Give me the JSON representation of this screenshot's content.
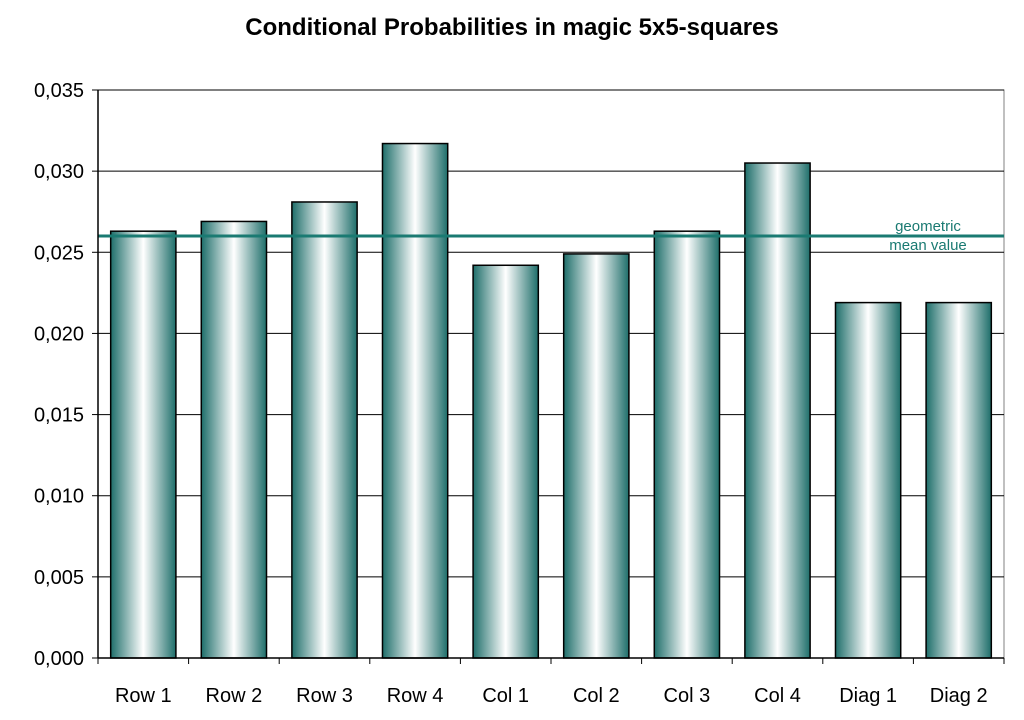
{
  "chart_data": {
    "type": "bar",
    "title": "Conditional Probabilities in magic 5x5-squares",
    "categories": [
      "Row 1",
      "Row 2",
      "Row 3",
      "Row 4",
      "Col 1",
      "Col 2",
      "Col 3",
      "Col 4",
      "Diag 1",
      "Diag 2"
    ],
    "values": [
      0.0263,
      0.0269,
      0.0281,
      0.0317,
      0.0242,
      0.0249,
      0.0263,
      0.0305,
      0.0219,
      0.0219
    ],
    "ylim": [
      0,
      0.035
    ],
    "yticks": [
      "0,000",
      "0,005",
      "0,010",
      "0,015",
      "0,020",
      "0,025",
      "0,030",
      "0,035"
    ],
    "ytick_values": [
      0,
      0.005,
      0.01,
      0.015,
      0.02,
      0.025,
      0.03,
      0.035
    ],
    "grid": true,
    "reference_line": {
      "value": 0.026,
      "label_line1": "geometric",
      "label_line2": "mean value",
      "color": "#1a7a72"
    },
    "bar_edge_color": "#000000",
    "bar_dark_color": "#1e6e6a",
    "bar_light_color": "#ffffff"
  }
}
